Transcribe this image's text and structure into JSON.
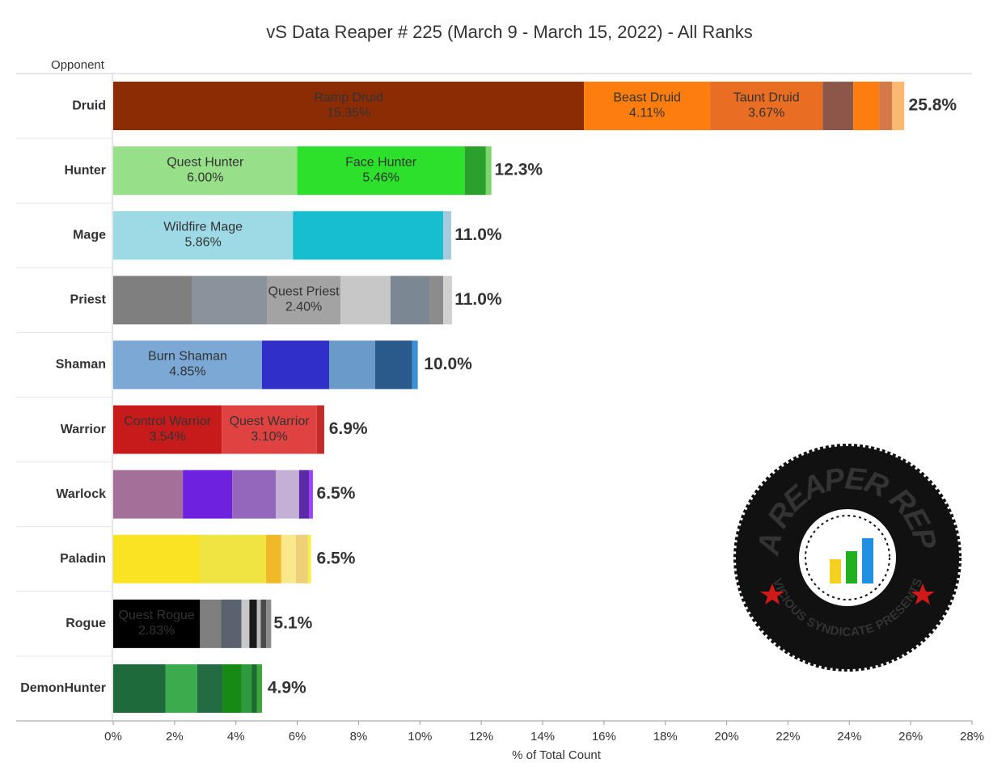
{
  "chart_data": {
    "type": "stacked_bar_horizontal",
    "title": "vS Data Reaper # 225 (March 9 - March 15, 2022) - All Ranks",
    "y_axis_label": "Opponent",
    "x_axis_label": "% of Total Count",
    "xlim": [
      0,
      28
    ],
    "xticks": [
      {
        "value": 0,
        "label": "0%"
      },
      {
        "value": 2,
        "label": "2%"
      },
      {
        "value": 4,
        "label": "4%"
      },
      {
        "value": 6,
        "label": "6%"
      },
      {
        "value": 8,
        "label": "8%"
      },
      {
        "value": 10,
        "label": "10%"
      },
      {
        "value": 12,
        "label": "12%"
      },
      {
        "value": 14,
        "label": "14%"
      },
      {
        "value": 16,
        "label": "16%"
      },
      {
        "value": 18,
        "label": "18%"
      },
      {
        "value": 20,
        "label": "20%"
      },
      {
        "value": 22,
        "label": "22%"
      },
      {
        "value": 24,
        "label": "24%"
      },
      {
        "value": 26,
        "label": "26%"
      },
      {
        "value": 28,
        "label": "28%"
      }
    ],
    "bars": [
      {
        "category": "Druid",
        "total": 25.8,
        "total_label": "25.8%",
        "segments": [
          {
            "name": "Ramp Druid",
            "value": 15.35,
            "value_label": "15.35%",
            "color": "#8b2c04"
          },
          {
            "name": "Beast Druid",
            "value": 4.11,
            "value_label": "4.11%",
            "color": "#fd7e0f"
          },
          {
            "name": "Taunt Druid",
            "value": 3.67,
            "value_label": "3.67%",
            "color": "#e96d22"
          },
          {
            "value": 1.0,
            "color": "#8c5648"
          },
          {
            "value": 0.84,
            "color": "#fd7e0f"
          },
          {
            "value": 0.42,
            "color": "#d47a4a"
          },
          {
            "value": 0.4,
            "color": "#fcb872"
          }
        ]
      },
      {
        "category": "Hunter",
        "total": 12.3,
        "total_label": "12.3%",
        "segments": [
          {
            "name": "Quest Hunter",
            "value": 6.0,
            "value_label": "6.00%",
            "color": "#98df8a"
          },
          {
            "name": "Face Hunter",
            "value": 5.46,
            "value_label": "5.46%",
            "color": "#2ce02c"
          },
          {
            "value": 0.69,
            "color": "#2ca02c"
          },
          {
            "value": 0.18,
            "color": "#7bd66b"
          }
        ]
      },
      {
        "category": "Mage",
        "total": 11.0,
        "total_label": "11.0%",
        "segments": [
          {
            "name": "Wildfire Mage",
            "value": 5.86,
            "value_label": "5.86%",
            "color": "#9edae5"
          },
          {
            "value": 4.9,
            "color": "#17becf"
          },
          {
            "value": 0.26,
            "color": "#a6cbdc"
          }
        ]
      },
      {
        "category": "Priest",
        "total": 11.0,
        "total_label": "11.0%",
        "segments": [
          {
            "value": 2.58,
            "color": "#7f7f7f"
          },
          {
            "value": 2.43,
            "color": "#8a939b"
          },
          {
            "name": "Quest Priest",
            "value": 2.4,
            "value_label": "2.40%",
            "color": "#a3a3a3"
          },
          {
            "value": 1.63,
            "color": "#c7c7c7"
          },
          {
            "value": 1.27,
            "color": "#7b8792"
          },
          {
            "value": 0.45,
            "color": "#8c8c8c"
          },
          {
            "value": 0.29,
            "color": "#d0d0d0"
          }
        ]
      },
      {
        "category": "Shaman",
        "total": 10.0,
        "total_label": "10.0%",
        "segments": [
          {
            "name": "Burn Shaman",
            "value": 4.85,
            "value_label": "4.85%",
            "color": "#7ba8d4"
          },
          {
            "value": 2.19,
            "color": "#3030c8"
          },
          {
            "value": 1.5,
            "color": "#6a9ac8"
          },
          {
            "value": 1.21,
            "color": "#2a5a8c"
          },
          {
            "value": 0.18,
            "color": "#3a8fd6"
          }
        ]
      },
      {
        "category": "Warrior",
        "total": 6.9,
        "total_label": "6.9%",
        "segments": [
          {
            "name": "Control Warrior",
            "value": 3.54,
            "value_label": "3.54%",
            "color": "#c71b1b"
          },
          {
            "name": "Quest Warrior",
            "value": 3.1,
            "value_label": "3.10%",
            "color": "#e04242"
          },
          {
            "value": 0.24,
            "color": "#c42a2a"
          }
        ]
      },
      {
        "category": "Warlock",
        "total": 6.5,
        "total_label": "6.5%",
        "segments": [
          {
            "value": 2.27,
            "color": "#a27098"
          },
          {
            "value": 1.61,
            "color": "#6e22e0"
          },
          {
            "value": 1.42,
            "color": "#9467bd"
          },
          {
            "value": 0.76,
            "color": "#c5b0d5"
          },
          {
            "value": 0.32,
            "color": "#5a2aa8"
          },
          {
            "value": 0.13,
            "color": "#a040ff"
          }
        ]
      },
      {
        "category": "Paladin",
        "total": 6.5,
        "total_label": "6.5%",
        "segments": [
          {
            "value": 2.82,
            "color": "#fae322"
          },
          {
            "value": 2.16,
            "color": "#f0e442"
          },
          {
            "value": 0.5,
            "color": "#f0b92a"
          },
          {
            "value": 0.47,
            "color": "#fbe88a"
          },
          {
            "value": 0.4,
            "color": "#eed07a"
          },
          {
            "value": 0.1,
            "color": "#f8f040"
          }
        ]
      },
      {
        "category": "Rogue",
        "total": 5.1,
        "total_label": "5.1%",
        "segments": [
          {
            "name": "Quest Rogue",
            "value": 2.83,
            "value_label": "2.83%",
            "color": "#000000"
          },
          {
            "value": 0.69,
            "color": "#7f7f7f"
          },
          {
            "value": 0.66,
            "color": "#5a6270"
          },
          {
            "value": 0.26,
            "color": "#c7c7c7"
          },
          {
            "value": 0.24,
            "color": "#1a1a1a"
          },
          {
            "value": 0.13,
            "color": "#bbbbbb"
          },
          {
            "value": 0.18,
            "color": "#4a4a4a"
          },
          {
            "value": 0.16,
            "color": "#8a8a8a"
          }
        ]
      },
      {
        "category": "DemonHunter",
        "total": 4.9,
        "total_label": "4.9%",
        "segments": [
          {
            "value": 1.71,
            "color": "#1e6a3a"
          },
          {
            "value": 1.03,
            "color": "#3cab4e"
          },
          {
            "value": 0.82,
            "color": "#236b43"
          },
          {
            "value": 0.63,
            "color": "#158a15"
          },
          {
            "value": 0.32,
            "color": "#2e9a3e"
          },
          {
            "value": 0.18,
            "color": "#1f6b2f"
          },
          {
            "value": 0.16,
            "color": "#3aa63a"
          }
        ]
      }
    ]
  },
  "logo": {
    "top_text": "DATA REAPER REPORT",
    "bottom_text": "VICIOUS SYNDICATE PRESENTS"
  }
}
